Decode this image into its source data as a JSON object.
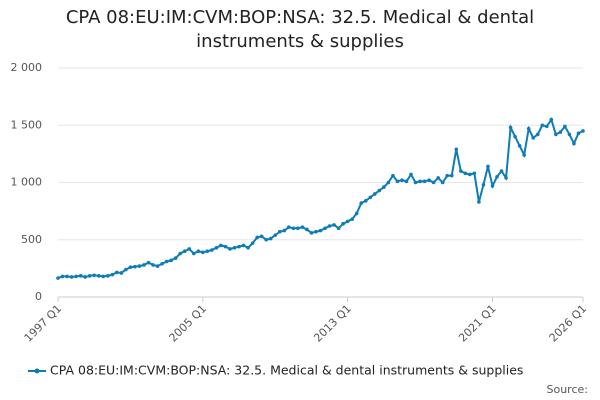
{
  "chart_data": {
    "type": "line",
    "title": "CPA 08:EU:IM:CVM:BOP:NSA: 32.5. Medical & dental instruments & supplies",
    "source": "Source:",
    "categories": [
      "1997 Q1",
      null,
      null,
      null,
      null,
      null,
      null,
      null,
      null,
      null,
      null,
      null,
      null,
      null,
      null,
      null,
      null,
      null,
      null,
      null,
      null,
      null,
      null,
      null,
      null,
      null,
      null,
      null,
      null,
      null,
      null,
      null,
      "2005 Q1",
      null,
      null,
      null,
      null,
      null,
      null,
      null,
      null,
      null,
      null,
      null,
      null,
      null,
      null,
      null,
      null,
      null,
      null,
      null,
      null,
      null,
      null,
      null,
      null,
      null,
      null,
      null,
      null,
      null,
      null,
      null,
      "2013 Q1",
      null,
      null,
      null,
      null,
      null,
      null,
      null,
      null,
      null,
      null,
      null,
      null,
      null,
      null,
      null,
      null,
      null,
      null,
      null,
      null,
      null,
      null,
      null,
      null,
      null,
      null,
      null,
      null,
      null,
      null,
      null,
      "2021 Q1",
      null,
      null,
      null,
      null,
      null,
      null,
      null,
      null,
      null,
      null,
      null,
      null,
      null,
      null,
      null,
      null,
      null,
      null,
      null,
      "2026 Q1"
    ],
    "series": [
      {
        "name": "CPA 08:EU:IM:CVM:BOP:NSA: 32.5. Medical & dental instruments & supplies",
        "color": "#0f7cb6",
        "values": [
          165,
          180,
          180,
          175,
          180,
          185,
          175,
          185,
          190,
          185,
          180,
          185,
          195,
          215,
          210,
          240,
          260,
          265,
          270,
          280,
          300,
          280,
          270,
          290,
          310,
          320,
          340,
          380,
          400,
          420,
          380,
          400,
          390,
          400,
          410,
          430,
          450,
          440,
          420,
          430,
          440,
          450,
          430,
          470,
          520,
          530,
          500,
          510,
          540,
          570,
          580,
          610,
          600,
          600,
          610,
          590,
          560,
          570,
          580,
          600,
          620,
          630,
          600,
          640,
          660,
          680,
          730,
          820,
          840,
          870,
          900,
          930,
          960,
          1000,
          1060,
          1010,
          1020,
          1010,
          1070,
          1000,
          1010,
          1010,
          1020,
          1000,
          1040,
          1000,
          1060,
          1060,
          1290,
          1100,
          1080,
          1070,
          1080,
          830,
          980,
          1140,
          970,
          1050,
          1100,
          1040,
          1480,
          1400,
          1320,
          1240,
          1470,
          1390,
          1420,
          1500,
          1490,
          1550,
          1420,
          1440,
          1490,
          1420,
          1340,
          1430,
          1450
        ]
      }
    ],
    "ylim": [
      0,
      2000
    ],
    "yticks": [
      0,
      500,
      {
        "value": 1000,
        "label": "1 000"
      },
      {
        "value": 1500,
        "label": "1 500"
      },
      {
        "value": 2000,
        "label": "2 000"
      }
    ],
    "grid": true,
    "legend": "bottom"
  }
}
